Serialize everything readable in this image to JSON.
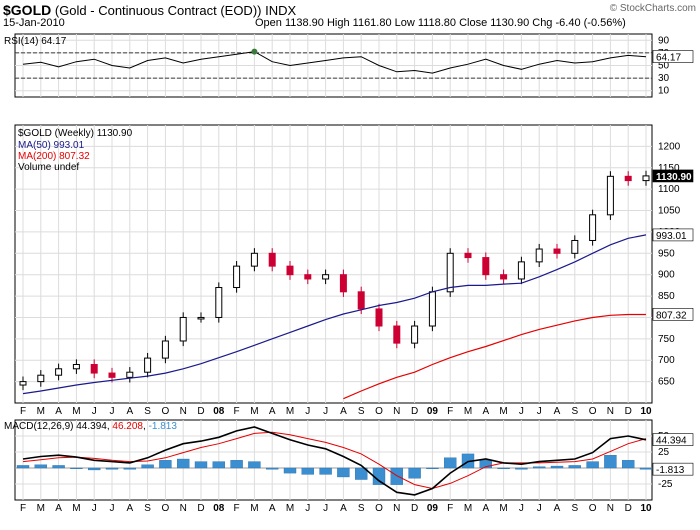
{
  "header": {
    "symbol": "$GOLD",
    "name": "(Gold - Continuous Contract (EOD))",
    "exchange": "INDX",
    "date": "15-Jan-2010",
    "ohlc_text": "Open 1138.90  High 1161.80  Low 1118.80  Close 1130.90  Chg -6.40 (-0.56%)",
    "brand": "© StockCharts.com"
  },
  "colors": {
    "up": "#000000",
    "down": "#cc0033",
    "ma50": "#1a1a8c",
    "ma200": "#e60000",
    "hist": "#3b8fd1",
    "rsi_fill": "#3a7a3a"
  },
  "chart_data": [
    {
      "type": "line",
      "title": "RSI(14) 64.17",
      "ylim": [
        0,
        100
      ],
      "yticks": [
        90,
        70,
        50,
        30,
        10
      ],
      "reference_lines": [
        70,
        30
      ],
      "last_value": 64.17,
      "x": [
        "F",
        "M",
        "A",
        "M",
        "J",
        "J",
        "A",
        "S",
        "O",
        "N",
        "D",
        "08",
        "F",
        "M",
        "A",
        "M",
        "J",
        "J",
        "A",
        "S",
        "O",
        "N",
        "D",
        "09",
        "F",
        "M",
        "A",
        "M",
        "J",
        "J",
        "A",
        "S",
        "O",
        "N",
        "D",
        "10"
      ],
      "series": [
        {
          "name": "RSI(14)",
          "values": [
            52,
            55,
            48,
            56,
            60,
            50,
            46,
            58,
            62,
            54,
            60,
            64,
            68,
            72,
            56,
            50,
            54,
            58,
            62,
            64,
            50,
            40,
            42,
            38,
            46,
            52,
            60,
            50,
            44,
            52,
            58,
            54,
            56,
            62,
            66,
            64
          ]
        }
      ]
    },
    {
      "type": "candlestick",
      "title": "$GOLD (Weekly) 1130.90",
      "legend": [
        "MA(50) 993.01",
        "MA(200) 807.32",
        "Volume undef"
      ],
      "ylim": [
        600,
        1250
      ],
      "yticks": [
        650,
        700,
        750,
        800,
        850,
        900,
        950,
        1000,
        1050,
        1100,
        1150,
        1200
      ],
      "x": [
        "F",
        "M",
        "A",
        "M",
        "J",
        "J",
        "A",
        "S",
        "O",
        "N",
        "D",
        "08",
        "F",
        "M",
        "A",
        "M",
        "J",
        "J",
        "A",
        "S",
        "O",
        "N",
        "D",
        "09",
        "F",
        "M",
        "A",
        "M",
        "J",
        "J",
        "A",
        "S",
        "O",
        "N",
        "D",
        "10"
      ],
      "last_labels": {
        "price": "1130.90",
        "ma50": "993.01",
        "ma200": "807.32"
      },
      "series": [
        {
          "name": "$GOLD weekly close",
          "values": [
            650,
            665,
            680,
            690,
            670,
            660,
            672,
            705,
            745,
            800,
            800,
            870,
            920,
            950,
            920,
            900,
            890,
            900,
            860,
            820,
            780,
            740,
            780,
            860,
            950,
            940,
            900,
            890,
            930,
            960,
            950,
            980,
            1040,
            1130,
            1120,
            1131
          ]
        },
        {
          "name": "MA(50)",
          "values": [
            622,
            628,
            635,
            642,
            648,
            653,
            658,
            663,
            670,
            680,
            692,
            706,
            720,
            735,
            750,
            765,
            780,
            795,
            808,
            818,
            828,
            835,
            845,
            860,
            870,
            875,
            875,
            878,
            880,
            895,
            912,
            930,
            950,
            970,
            985,
            993
          ]
        },
        {
          "name": "MA(200)",
          "values": [
            null,
            null,
            null,
            null,
            null,
            null,
            null,
            null,
            null,
            null,
            null,
            null,
            null,
            null,
            null,
            null,
            null,
            null,
            610,
            628,
            645,
            660,
            672,
            690,
            706,
            720,
            732,
            746,
            760,
            772,
            782,
            792,
            800,
            805,
            807,
            807
          ]
        }
      ]
    },
    {
      "type": "line",
      "title": "MACD(12,26,9) 44.394, 46.208, -1.813",
      "legend": [
        "MACD(12,26,9) 44.394",
        "46.208",
        "-1.813"
      ],
      "ylim": [
        -50,
        75
      ],
      "yticks": [
        50,
        25,
        0,
        -25
      ],
      "x": [
        "F",
        "M",
        "A",
        "M",
        "J",
        "J",
        "A",
        "S",
        "O",
        "N",
        "D",
        "08",
        "F",
        "M",
        "A",
        "M",
        "J",
        "J",
        "A",
        "S",
        "O",
        "N",
        "D",
        "09",
        "F",
        "M",
        "A",
        "M",
        "J",
        "J",
        "A",
        "S",
        "O",
        "N",
        "D",
        "10"
      ],
      "last_labels": {
        "macd": "44.394",
        "hist": "-1.813"
      },
      "series": [
        {
          "name": "MACD(12,26,9)",
          "values": [
            14,
            18,
            20,
            17,
            12,
            10,
            8,
            16,
            28,
            38,
            42,
            48,
            58,
            64,
            54,
            44,
            36,
            30,
            18,
            4,
            -20,
            -38,
            -42,
            -32,
            -8,
            10,
            14,
            8,
            6,
            10,
            12,
            14,
            24,
            46,
            50,
            44
          ]
        },
        {
          "name": "Signal",
          "values": [
            10,
            13,
            16,
            17,
            15,
            12,
            10,
            11,
            16,
            24,
            32,
            38,
            46,
            54,
            56,
            52,
            46,
            40,
            32,
            22,
            6,
            -12,
            -26,
            -32,
            -24,
            -12,
            2,
            8,
            8,
            8,
            9,
            10,
            14,
            26,
            38,
            46
          ]
        },
        {
          "name": "Histogram",
          "values": [
            4,
            5,
            4,
            0,
            -3,
            -2,
            -2,
            5,
            12,
            14,
            10,
            10,
            12,
            10,
            -2,
            -8,
            -10,
            -10,
            -14,
            -18,
            -26,
            -26,
            -16,
            0,
            16,
            22,
            12,
            0,
            -2,
            2,
            3,
            4,
            10,
            20,
            12,
            -2
          ]
        }
      ]
    }
  ]
}
